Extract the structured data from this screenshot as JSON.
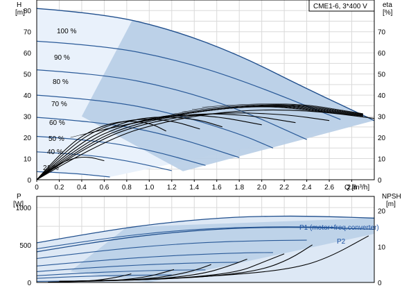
{
  "chart_data": [
    {
      "type": "line",
      "title": "CME1-6, 3*400 V",
      "xlabel": "Q [m³/h]",
      "ylabel_left": "H",
      "ylabel_left_unit": "[m]",
      "ylabel_right": "eta",
      "ylabel_right_unit": "[%]",
      "xlim": [
        0,
        3.0
      ],
      "ylim": [
        0,
        85
      ],
      "y2lim": [
        0,
        85
      ],
      "xticks": [
        "0",
        "0.2",
        "0.4",
        "0.6",
        "0.8",
        "1.0",
        "1.2",
        "1.4",
        "1.6",
        "1.8",
        "2.0",
        "2.2",
        "2.4",
        "2.6",
        "2.8"
      ],
      "yticks_left": [
        "0",
        "10",
        "20",
        "30",
        "40",
        "50",
        "60",
        "70",
        "80"
      ],
      "yticks_right": [
        "0",
        "10",
        "20",
        "30",
        "40",
        "50",
        "60",
        "70"
      ],
      "grid": true,
      "speed_curves": [
        {
          "label": "100 %",
          "x": [
            0,
            0.6,
            1.2,
            1.8,
            2.4,
            3.0
          ],
          "y": [
            81,
            78.5,
            71,
            59,
            43,
            28
          ]
        },
        {
          "label": "90 %",
          "x": [
            0,
            0.6,
            1.2,
            1.8,
            2.7
          ],
          "y": [
            65.5,
            63.4,
            57.3,
            47.6,
            28.5
          ]
        },
        {
          "label": "80 %",
          "x": [
            0,
            0.6,
            1.2,
            1.8,
            2.4
          ],
          "y": [
            52,
            49.8,
            43.5,
            33.4,
            19
          ]
        },
        {
          "label": "70 %",
          "x": [
            0,
            0.6,
            1.2,
            1.8,
            2.1
          ],
          "y": [
            40,
            37.7,
            31.6,
            21.8,
            15
          ]
        },
        {
          "label": "60 %",
          "x": [
            0,
            0.6,
            1.2,
            1.8
          ],
          "y": [
            29.5,
            27.2,
            20.8,
            10.5
          ]
        },
        {
          "label": "50 %",
          "x": [
            0,
            0.5,
            1.0,
            1.5
          ],
          "y": [
            20.5,
            18.8,
            14.2,
            6.8
          ]
        },
        {
          "label": "40 %",
          "x": [
            0,
            0.4,
            0.8,
            1.2
          ],
          "y": [
            13.2,
            12.1,
            9.1,
            4.3
          ]
        },
        {
          "label": "21 %",
          "x": [
            0,
            0.3,
            0.65
          ],
          "y": [
            3.8,
            3.2,
            1.3
          ]
        }
      ],
      "eta_curves": [
        {
          "label": "",
          "x": [
            0,
            0.6,
            1.2,
            1.8,
            2.4,
            3.0
          ],
          "y": [
            0,
            19,
            28.5,
            33,
            33,
            29
          ]
        },
        {
          "label": "",
          "x": [
            0,
            0.5,
            1.0,
            1.6,
            2.2,
            2.6
          ],
          "y": [
            0,
            18,
            27.5,
            32,
            31,
            28
          ]
        },
        {
          "label": "",
          "x": [
            0,
            0.45,
            0.9,
            1.4,
            1.9,
            2.3
          ],
          "y": [
            0,
            17.5,
            27,
            31.5,
            30.5,
            27
          ]
        },
        {
          "label": "",
          "x": [
            0,
            0.4,
            0.8,
            1.2,
            1.6,
            2.0
          ],
          "y": [
            0,
            17,
            26.5,
            31,
            30,
            26
          ]
        },
        {
          "label": "",
          "x": [
            0,
            0.35,
            0.7,
            1.0,
            1.4,
            1.65
          ],
          "y": [
            0,
            16.5,
            26,
            30,
            29,
            25
          ]
        },
        {
          "label": "",
          "x": [
            0,
            0.3,
            0.6,
            0.9,
            1.2,
            1.45
          ],
          "y": [
            0,
            16,
            25.5,
            29,
            28,
            24
          ]
        },
        {
          "label": "",
          "x": [
            0,
            0.25,
            0.5,
            0.75,
            1.0,
            1.15
          ],
          "y": [
            0,
            15,
            24,
            28,
            27,
            23
          ]
        },
        {
          "label": "",
          "x": [
            0,
            0.15,
            0.3,
            0.45,
            0.6
          ],
          "y": [
            0,
            6,
            10,
            11,
            9
          ]
        }
      ]
    },
    {
      "type": "line",
      "title": "",
      "xlabel": "",
      "ylabel_left": "P",
      "ylabel_left_unit": "[W]",
      "ylabel_right": "NPSH",
      "ylabel_right_unit": "[m]",
      "xlim": [
        0,
        3.0
      ],
      "ylim": [
        0,
        1150
      ],
      "y2lim": [
        0,
        24
      ],
      "yticks_left": [
        "0",
        "500",
        "1000"
      ],
      "yticks_right": [
        "0",
        "10",
        "20"
      ],
      "grid": true,
      "series": [
        {
          "name": "P1 (motor+freq.converter)",
          "x": [
            0,
            0.6,
            1.2,
            1.8,
            2.4,
            3.0
          ],
          "y": [
            530,
            690,
            810,
            880,
            890,
            860
          ]
        },
        {
          "name": "P2",
          "x": [
            0,
            0.6,
            1.2,
            1.8,
            2.4,
            3.0
          ],
          "y": [
            410,
            560,
            670,
            730,
            740,
            710
          ]
        }
      ],
      "power_curves": [
        {
          "x": [
            0,
            0.6,
            1.2,
            1.8,
            2.4,
            2.7
          ],
          "y": [
            450,
            590,
            690,
            740,
            745,
            730
          ]
        },
        {
          "x": [
            0,
            0.6,
            1.2,
            1.8,
            2.4
          ],
          "y": [
            320,
            430,
            510,
            555,
            565
          ]
        },
        {
          "x": [
            0,
            0.6,
            1.2,
            1.8,
            2.1
          ],
          "y": [
            220,
            300,
            360,
            395,
            400
          ]
        },
        {
          "x": [
            0,
            0.5,
            1.0,
            1.5,
            1.8
          ],
          "y": [
            145,
            200,
            240,
            265,
            270
          ]
        },
        {
          "x": [
            0,
            0.4,
            0.8,
            1.2,
            1.5
          ],
          "y": [
            90,
            125,
            150,
            165,
            168
          ]
        },
        {
          "x": [
            0,
            0.3,
            0.6,
            0.9,
            1.2
          ],
          "y": [
            55,
            75,
            90,
            98,
            100
          ]
        },
        {
          "x": [
            0,
            0.3,
            0.65
          ],
          "y": [
            15,
            20,
            22
          ]
        }
      ],
      "npsh_curves": [
        {
          "x": [
            0.2,
            1.0,
            1.8,
            2.3,
            2.6,
            2.95
          ],
          "y": [
            0.3,
            0.8,
            2.2,
            4.0,
            7.0,
            13.0
          ]
        },
        {
          "x": [
            0.2,
            1.0,
            1.6,
            2.0,
            2.25,
            2.45
          ],
          "y": [
            0.3,
            0.7,
            1.8,
            3.5,
            6.5,
            10.5
          ]
        },
        {
          "x": [
            0.2,
            0.9,
            1.4,
            1.8,
            2.0,
            2.2
          ],
          "y": [
            0.3,
            0.6,
            1.5,
            3.0,
            5.5,
            8.0
          ]
        },
        {
          "x": [
            0.2,
            0.8,
            1.2,
            1.5,
            1.7,
            1.87
          ],
          "y": [
            0.3,
            0.5,
            1.3,
            2.6,
            4.5,
            6.5
          ]
        },
        {
          "x": [
            0.2,
            0.6,
            1.0,
            1.25,
            1.42,
            1.55
          ],
          "y": [
            0.3,
            0.4,
            1.0,
            2.2,
            3.5,
            5.0
          ]
        },
        {
          "x": [
            0.2,
            0.5,
            0.8,
            1.0,
            1.12,
            1.22
          ],
          "y": [
            0.2,
            0.3,
            0.8,
            1.7,
            2.7,
            3.6
          ]
        },
        {
          "x": [
            0.1,
            0.3,
            0.5,
            0.65,
            0.75,
            0.84
          ],
          "y": [
            0.1,
            0.2,
            0.5,
            1.1,
            1.7,
            2.4
          ]
        }
      ]
    }
  ]
}
